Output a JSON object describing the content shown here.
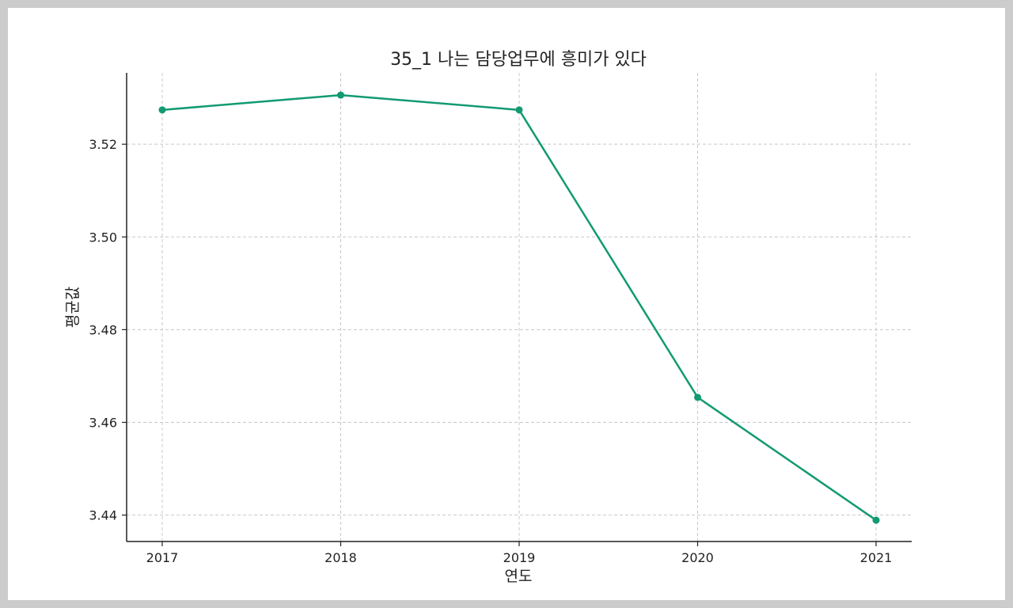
{
  "chart_data": {
    "type": "line",
    "title": "35_1 나는 담당업무에 흥미가 있다",
    "xlabel": "연도",
    "ylabel": "평균값",
    "categories": [
      "2017",
      "2018",
      "2019",
      "2020",
      "2021"
    ],
    "series": [
      {
        "values": [
          3.5274,
          3.5306,
          3.5274,
          3.4654,
          3.4389
        ],
        "color": "#129a72"
      }
    ],
    "ylim": [
      3.4343,
      3.5354
    ],
    "yticks": [
      "3.44",
      "3.46",
      "3.48",
      "3.50",
      "3.52"
    ],
    "grid": true,
    "legend": "none"
  }
}
